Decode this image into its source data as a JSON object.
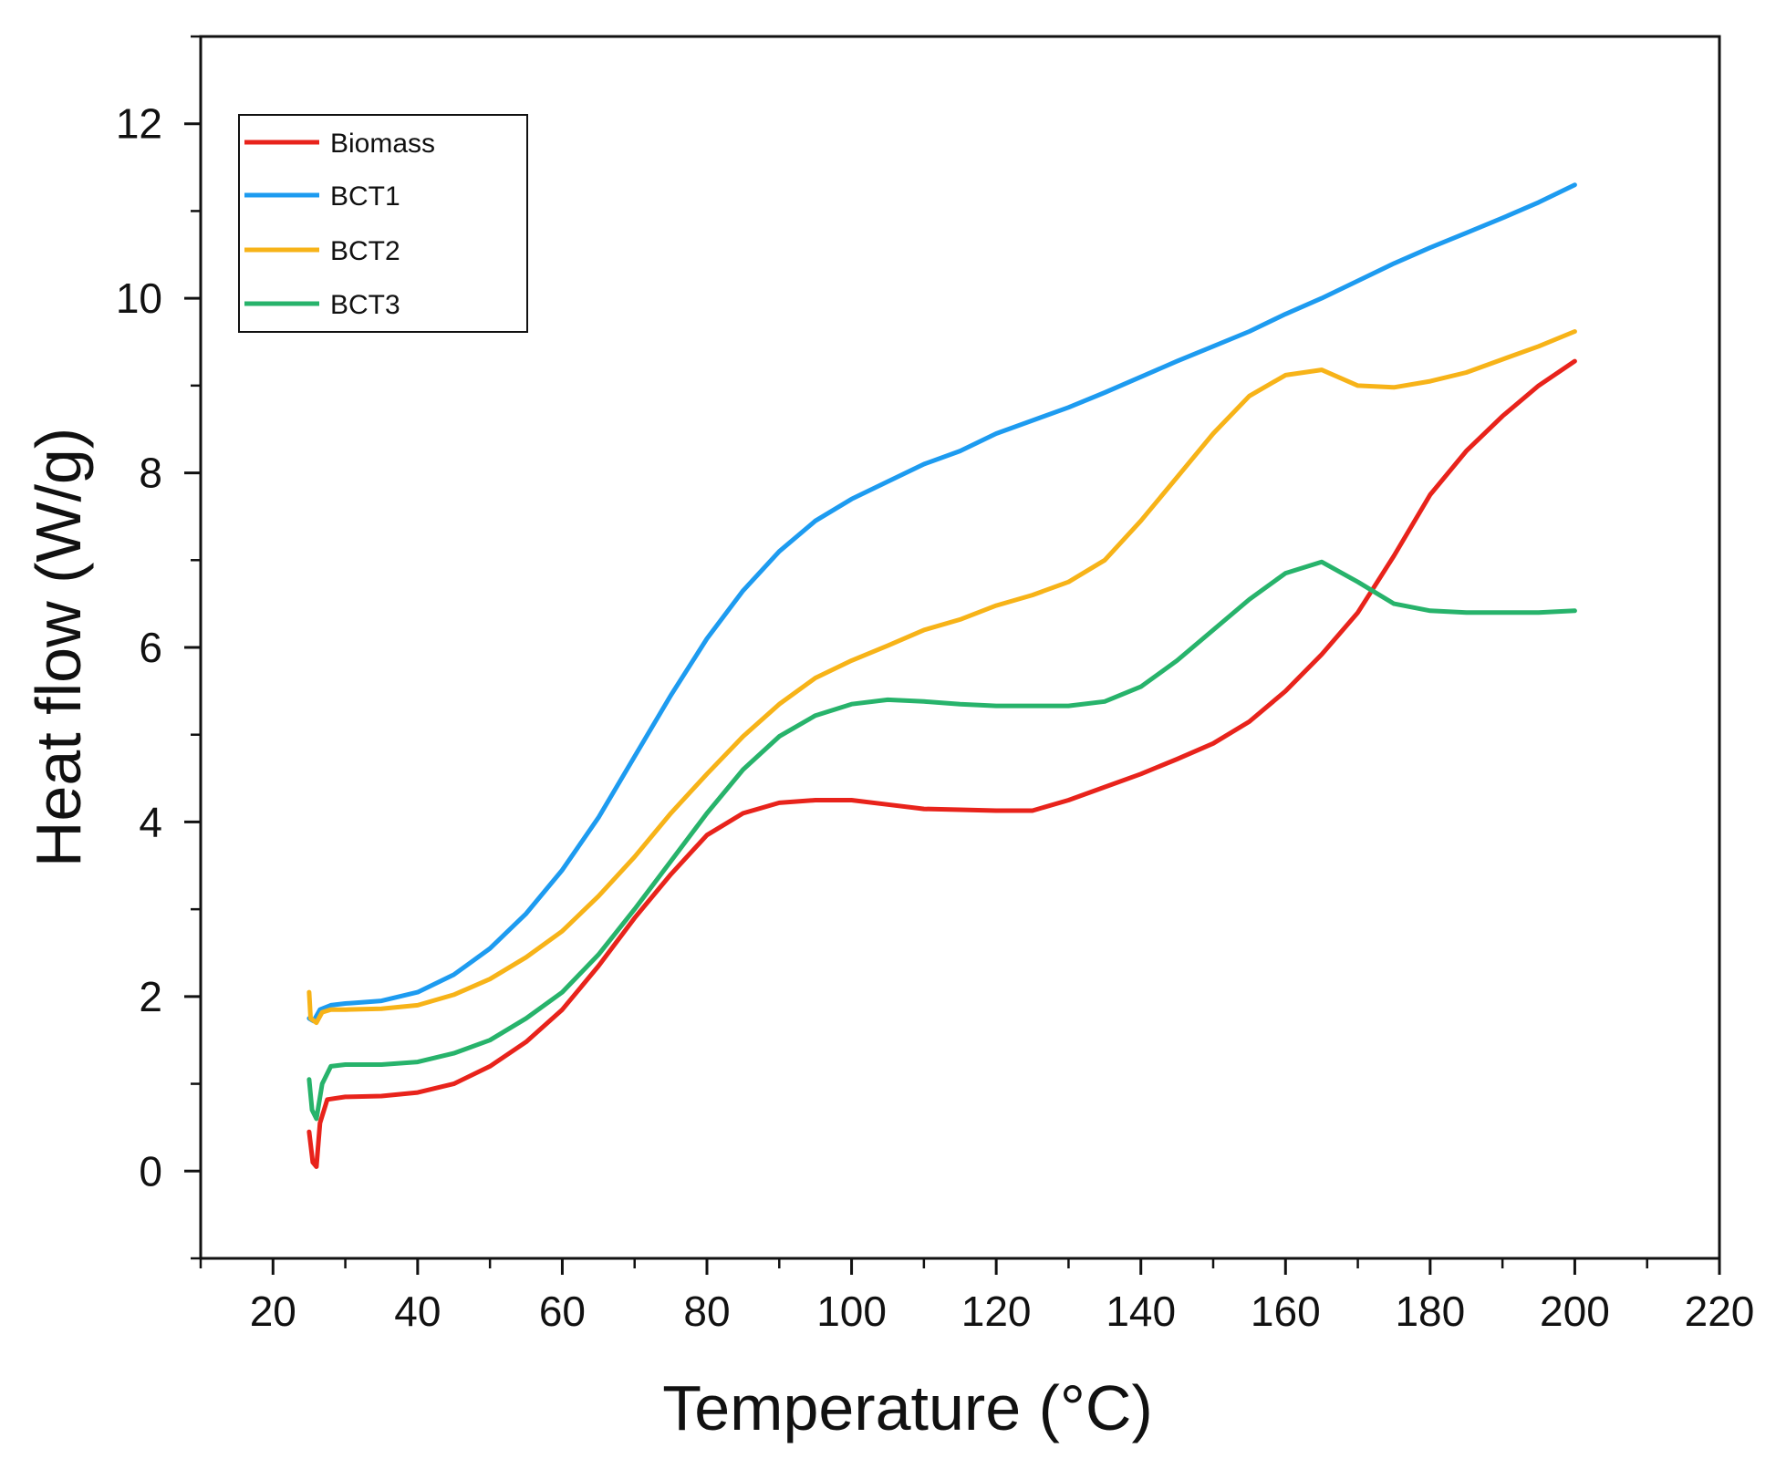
{
  "chart_data": {
    "type": "line",
    "title": "",
    "xlabel": "Temperature (°C)",
    "ylabel": "Heat flow (W/g)",
    "xlim": [
      10,
      220
    ],
    "ylim": [
      -1,
      13
    ],
    "x_ticks": [
      20,
      40,
      60,
      80,
      100,
      120,
      140,
      160,
      180,
      200,
      220
    ],
    "x_tick_labels": [
      "20",
      "40",
      "60",
      "80",
      "100",
      "120",
      "140",
      "160",
      "180",
      "200",
      "220"
    ],
    "y_ticks": [
      0,
      2,
      4,
      6,
      8,
      10,
      12
    ],
    "y_tick_labels": [
      "0",
      "2",
      "4",
      "6",
      "8",
      "10",
      "12"
    ],
    "legend_position": "top-left",
    "series": [
      {
        "name": "Biomass",
        "color": "#e8231b",
        "points": [
          [
            25.0,
            0.45
          ],
          [
            25.5,
            0.1
          ],
          [
            26.0,
            0.05
          ],
          [
            26.5,
            0.55
          ],
          [
            27.5,
            0.82
          ],
          [
            30,
            0.85
          ],
          [
            35,
            0.86
          ],
          [
            40,
            0.9
          ],
          [
            45,
            1.0
          ],
          [
            50,
            1.2
          ],
          [
            55,
            1.48
          ],
          [
            60,
            1.85
          ],
          [
            65,
            2.35
          ],
          [
            70,
            2.9
          ],
          [
            75,
            3.4
          ],
          [
            80,
            3.85
          ],
          [
            85,
            4.1
          ],
          [
            90,
            4.22
          ],
          [
            95,
            4.25
          ],
          [
            100,
            4.25
          ],
          [
            105,
            4.2
          ],
          [
            110,
            4.15
          ],
          [
            115,
            4.14
          ],
          [
            120,
            4.13
          ],
          [
            125,
            4.13
          ],
          [
            130,
            4.25
          ],
          [
            135,
            4.4
          ],
          [
            140,
            4.55
          ],
          [
            145,
            4.72
          ],
          [
            150,
            4.9
          ],
          [
            155,
            5.15
          ],
          [
            160,
            5.5
          ],
          [
            165,
            5.92
          ],
          [
            170,
            6.4
          ],
          [
            175,
            7.05
          ],
          [
            180,
            7.75
          ],
          [
            185,
            8.25
          ],
          [
            190,
            8.65
          ],
          [
            195,
            9.0
          ],
          [
            200,
            9.28
          ]
        ]
      },
      {
        "name": "BCT1",
        "color": "#1d9bf0",
        "points": [
          [
            25.0,
            1.75
          ],
          [
            25.6,
            1.72
          ],
          [
            26.5,
            1.85
          ],
          [
            28,
            1.9
          ],
          [
            30,
            1.92
          ],
          [
            35,
            1.95
          ],
          [
            40,
            2.05
          ],
          [
            45,
            2.25
          ],
          [
            50,
            2.55
          ],
          [
            55,
            2.95
          ],
          [
            60,
            3.45
          ],
          [
            65,
            4.05
          ],
          [
            70,
            4.75
          ],
          [
            75,
            5.45
          ],
          [
            80,
            6.1
          ],
          [
            85,
            6.65
          ],
          [
            90,
            7.1
          ],
          [
            95,
            7.45
          ],
          [
            100,
            7.7
          ],
          [
            105,
            7.9
          ],
          [
            110,
            8.1
          ],
          [
            115,
            8.25
          ],
          [
            120,
            8.45
          ],
          [
            125,
            8.6
          ],
          [
            130,
            8.75
          ],
          [
            135,
            8.92
          ],
          [
            140,
            9.1
          ],
          [
            145,
            9.28
          ],
          [
            150,
            9.45
          ],
          [
            155,
            9.62
          ],
          [
            160,
            9.82
          ],
          [
            165,
            10.0
          ],
          [
            170,
            10.2
          ],
          [
            175,
            10.4
          ],
          [
            180,
            10.58
          ],
          [
            185,
            10.75
          ],
          [
            190,
            10.92
          ],
          [
            195,
            11.1
          ],
          [
            200,
            11.3
          ]
        ]
      },
      {
        "name": "BCT2",
        "color": "#f7b318",
        "points": [
          [
            25.0,
            2.05
          ],
          [
            25.2,
            1.75
          ],
          [
            26,
            1.7
          ],
          [
            26.8,
            1.82
          ],
          [
            28,
            1.85
          ],
          [
            30,
            1.85
          ],
          [
            35,
            1.86
          ],
          [
            40,
            1.9
          ],
          [
            45,
            2.02
          ],
          [
            50,
            2.2
          ],
          [
            55,
            2.45
          ],
          [
            60,
            2.75
          ],
          [
            65,
            3.15
          ],
          [
            70,
            3.6
          ],
          [
            75,
            4.1
          ],
          [
            80,
            4.55
          ],
          [
            85,
            4.98
          ],
          [
            90,
            5.35
          ],
          [
            95,
            5.65
          ],
          [
            100,
            5.85
          ],
          [
            105,
            6.02
          ],
          [
            110,
            6.2
          ],
          [
            115,
            6.32
          ],
          [
            120,
            6.48
          ],
          [
            125,
            6.6
          ],
          [
            130,
            6.75
          ],
          [
            135,
            7.0
          ],
          [
            140,
            7.45
          ],
          [
            145,
            7.95
          ],
          [
            150,
            8.45
          ],
          [
            155,
            8.88
          ],
          [
            160,
            9.12
          ],
          [
            165,
            9.18
          ],
          [
            170,
            9.0
          ],
          [
            175,
            8.98
          ],
          [
            180,
            9.05
          ],
          [
            185,
            9.15
          ],
          [
            190,
            9.3
          ],
          [
            195,
            9.45
          ],
          [
            200,
            9.62
          ]
        ]
      },
      {
        "name": "BCT3",
        "color": "#27b36b",
        "points": [
          [
            25.0,
            1.05
          ],
          [
            25.4,
            0.7
          ],
          [
            26,
            0.6
          ],
          [
            26.8,
            1.0
          ],
          [
            28,
            1.2
          ],
          [
            30,
            1.22
          ],
          [
            35,
            1.22
          ],
          [
            40,
            1.25
          ],
          [
            45,
            1.35
          ],
          [
            50,
            1.5
          ],
          [
            55,
            1.75
          ],
          [
            60,
            2.05
          ],
          [
            65,
            2.48
          ],
          [
            70,
            3.0
          ],
          [
            75,
            3.55
          ],
          [
            80,
            4.1
          ],
          [
            85,
            4.6
          ],
          [
            90,
            4.98
          ],
          [
            95,
            5.22
          ],
          [
            100,
            5.35
          ],
          [
            105,
            5.4
          ],
          [
            110,
            5.38
          ],
          [
            115,
            5.35
          ],
          [
            120,
            5.33
          ],
          [
            125,
            5.33
          ],
          [
            130,
            5.33
          ],
          [
            135,
            5.38
          ],
          [
            140,
            5.55
          ],
          [
            145,
            5.85
          ],
          [
            150,
            6.2
          ],
          [
            155,
            6.55
          ],
          [
            160,
            6.85
          ],
          [
            165,
            6.98
          ],
          [
            170,
            6.75
          ],
          [
            175,
            6.5
          ],
          [
            180,
            6.42
          ],
          [
            185,
            6.4
          ],
          [
            190,
            6.4
          ],
          [
            195,
            6.4
          ],
          [
            200,
            6.42
          ]
        ]
      }
    ]
  }
}
